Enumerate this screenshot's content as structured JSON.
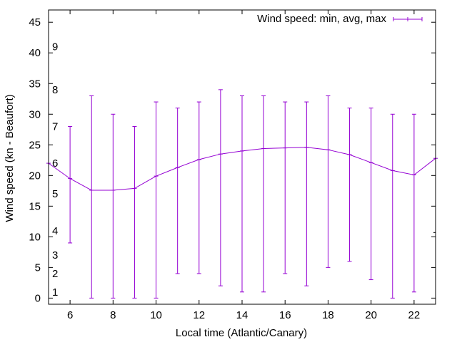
{
  "chart_data": {
    "type": "line",
    "title": "",
    "xlabel": "Local time (Atlantic/Canary)",
    "ylabel": "Wind speed (kn - Beaufort)",
    "xlim": [
      5,
      23
    ],
    "ylim": [
      -1,
      47
    ],
    "x_ticks": [
      6,
      8,
      10,
      12,
      14,
      16,
      18,
      20,
      22
    ],
    "y_ticks": [
      0,
      5,
      10,
      15,
      20,
      25,
      30,
      35,
      40,
      45
    ],
    "beaufort_labels": [
      {
        "label": "1",
        "value": 1
      },
      {
        "label": "2",
        "value": 4
      },
      {
        "label": "3",
        "value": 7
      },
      {
        "label": "4",
        "value": 11
      },
      {
        "label": "5",
        "value": 17
      },
      {
        "label": "6",
        "value": 22
      },
      {
        "label": "7",
        "value": 28
      },
      {
        "label": "8",
        "value": 34
      },
      {
        "label": "9",
        "value": 41
      }
    ],
    "legend": {
      "label": "Wind speed: min, avg, max",
      "position": "top-right"
    },
    "series": [
      {
        "name": "Wind speed: min, avg, max",
        "color": "#9400d3",
        "x": [
          5,
          6,
          7,
          8,
          9,
          10,
          11,
          12,
          13,
          14,
          15,
          16,
          17,
          18,
          19,
          20,
          21,
          22,
          23
        ],
        "avg": [
          22.0,
          19.5,
          17.6,
          17.6,
          17.9,
          19.9,
          21.3,
          22.6,
          23.5,
          24.0,
          24.4,
          24.5,
          24.6,
          24.2,
          23.4,
          22.1,
          20.8,
          20.1,
          22.8
        ],
        "min": [
          null,
          9.0,
          0.0,
          0.0,
          0.0,
          0.0,
          4.0,
          4.0,
          2.0,
          1.0,
          1.0,
          4.0,
          2.0,
          5.0,
          6.0,
          3.0,
          0.0,
          1.0,
          null
        ],
        "max": [
          null,
          28.0,
          33.0,
          30.0,
          28.0,
          32.0,
          31.0,
          32.0,
          34.0,
          33.0,
          33.0,
          32.0,
          32.0,
          33.0,
          31.0,
          31.0,
          30.0,
          30.0,
          null
        ]
      }
    ]
  }
}
